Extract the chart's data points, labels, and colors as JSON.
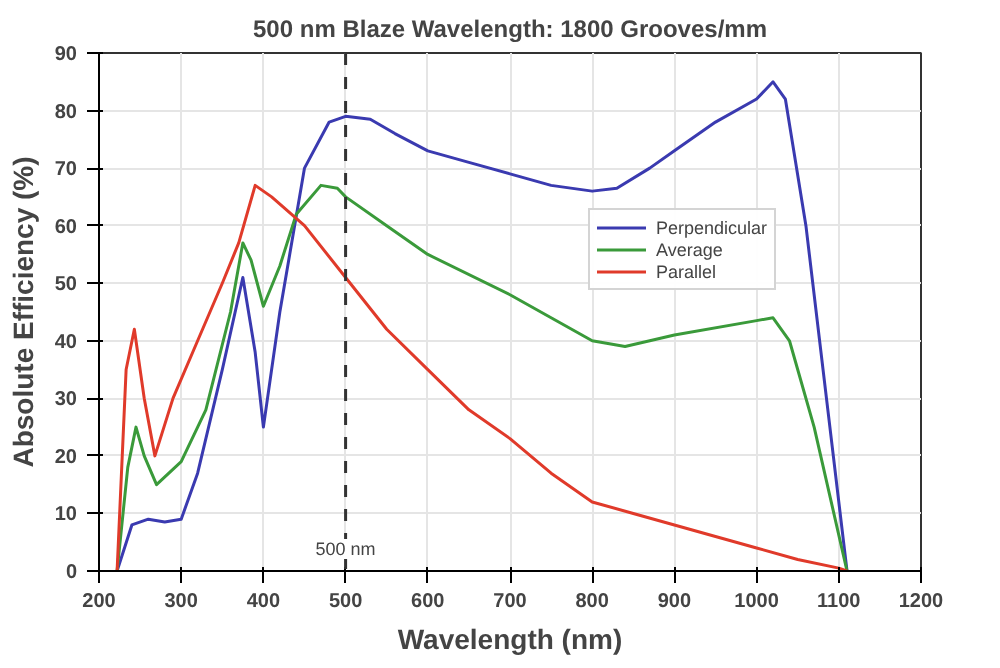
{
  "chart_data": {
    "type": "line",
    "title": "500 nm Blaze Wavelength: 1800 Grooves/mm",
    "xlabel": "Wavelength (nm)",
    "ylabel": "Absolute Efficiency (%)",
    "xlim": [
      200,
      1200
    ],
    "xticks": [
      200,
      300,
      400,
      500,
      600,
      700,
      800,
      900,
      1000,
      1100,
      1200
    ],
    "ylim": [
      0,
      90
    ],
    "yticks": [
      0,
      10,
      20,
      30,
      40,
      50,
      60,
      70,
      80,
      90
    ],
    "grid": true,
    "legend": "right",
    "marker": "none",
    "line_style": "solid",
    "ref_lines": [
      {
        "axis": "x",
        "value": 500,
        "label": "500 nm",
        "color": "#333333",
        "line_style": "dashed"
      }
    ],
    "series": [
      {
        "name": "Perpendicular",
        "color": "#3a3ab0",
        "x": [
          222,
          240,
          260,
          280,
          300,
          320,
          350,
          375,
          390,
          400,
          420,
          450,
          480,
          500,
          530,
          560,
          600,
          650,
          700,
          750,
          800,
          830,
          870,
          900,
          950,
          1000,
          1020,
          1035,
          1060,
          1085,
          1110
        ],
        "values": [
          0,
          8,
          9,
          8.5,
          9,
          17,
          35,
          51,
          38,
          25,
          45,
          70,
          78,
          79,
          78.5,
          76,
          73,
          71,
          69,
          67,
          66,
          66.5,
          70,
          73,
          78,
          82,
          85,
          82,
          60,
          30,
          0
        ]
      },
      {
        "name": "Average",
        "color": "#3a9a3a",
        "x": [
          222,
          235,
          245,
          255,
          270,
          300,
          330,
          360,
          375,
          385,
          400,
          420,
          440,
          470,
          490,
          500,
          550,
          600,
          700,
          800,
          840,
          900,
          1000,
          1020,
          1040,
          1070,
          1110
        ],
        "values": [
          0,
          18,
          25,
          20,
          15,
          19,
          28,
          45,
          57,
          54,
          46,
          53,
          62,
          67,
          66.5,
          65,
          60,
          55,
          48,
          40,
          39,
          41,
          43.5,
          44,
          40,
          25,
          0
        ]
      },
      {
        "name": "Parallel",
        "color": "#e03a2a",
        "x": [
          222,
          233,
          243,
          255,
          268,
          290,
          320,
          350,
          370,
          390,
          410,
          450,
          500,
          550,
          600,
          650,
          700,
          750,
          800,
          850,
          900,
          950,
          1000,
          1050,
          1100,
          1110
        ],
        "values": [
          0,
          35,
          42,
          30,
          20,
          30,
          40,
          50,
          57,
          67,
          65,
          60,
          51,
          42,
          35,
          28,
          23,
          17,
          12,
          10,
          8,
          6,
          4,
          2,
          0.5,
          0
        ]
      }
    ]
  }
}
